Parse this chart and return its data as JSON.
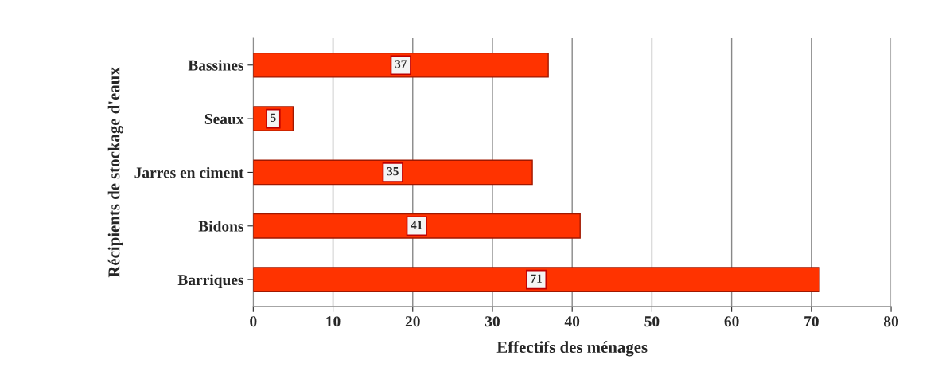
{
  "chart_data": {
    "type": "bar",
    "orientation": "horizontal",
    "categories": [
      "Bassines",
      "Seaux",
      "Jarres en ciment",
      "Bidons",
      "Barriques"
    ],
    "values": [
      37,
      5,
      35,
      41,
      71
    ],
    "color": "#ff3300",
    "xlim": [
      0,
      80
    ],
    "xticks": [
      0,
      10,
      20,
      30,
      40,
      50,
      60,
      70,
      80
    ],
    "xlabel": "Effectifs des ménages",
    "ylabel": "Récipients de stockage d'eaux",
    "grid": "x",
    "data_labels": true
  }
}
